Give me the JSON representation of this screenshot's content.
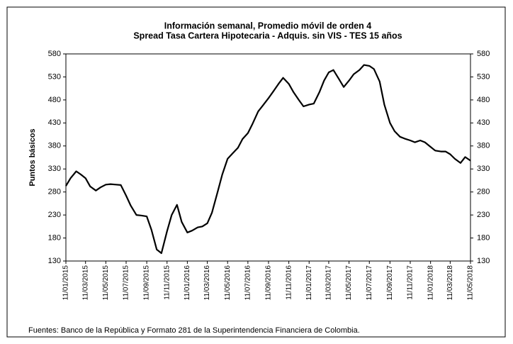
{
  "chart_data": {
    "type": "line",
    "title": [
      "Información semanal, Promedio móvil de orden 4",
      "Spread Tasa Cartera Hipotecaria - Adquis. sin VIS -  TES 15 años"
    ],
    "y_label": "Puntos básicos",
    "source": "Fuentes: Banco de la República y Formato 281 de la Superintendencia Financiera de Colombia.",
    "x": [
      "11/01/2015",
      "25/01/2015",
      "11/02/2015",
      "25/02/2015",
      "11/03/2015",
      "25/03/2015",
      "11/04/2015",
      "25/04/2015",
      "11/05/2015",
      "25/05/2015",
      "11/06/2015",
      "25/06/2015",
      "11/07/2015",
      "25/07/2015",
      "11/08/2015",
      "25/08/2015",
      "11/09/2015",
      "25/09/2015",
      "11/10/2015",
      "25/10/2015",
      "11/11/2015",
      "25/11/2015",
      "11/12/2015",
      "25/12/2015",
      "11/01/2016",
      "25/01/2016",
      "11/02/2016",
      "25/02/2016",
      "11/03/2016",
      "25/03/2016",
      "11/04/2016",
      "25/04/2016",
      "11/05/2016",
      "25/05/2016",
      "11/06/2016",
      "25/06/2016",
      "11/07/2016",
      "25/07/2016",
      "11/08/2016",
      "25/08/2016",
      "11/09/2016",
      "25/09/2016",
      "11/10/2016",
      "25/10/2016",
      "11/11/2016",
      "25/11/2016",
      "11/12/2016",
      "25/12/2016",
      "11/01/2017",
      "25/01/2017",
      "11/02/2017",
      "25/02/2017",
      "11/03/2017",
      "25/03/2017",
      "11/04/2017",
      "25/04/2017",
      "11/05/2017",
      "25/05/2017",
      "11/06/2017",
      "25/06/2017",
      "11/07/2017",
      "25/07/2017",
      "11/08/2017",
      "25/08/2017",
      "11/09/2017",
      "25/09/2017",
      "11/10/2017",
      "25/10/2017",
      "11/11/2017",
      "25/11/2017",
      "11/12/2017",
      "25/12/2017",
      "11/01/2018",
      "25/01/2018",
      "11/02/2018",
      "25/02/2018",
      "11/03/2018",
      "25/03/2018",
      "11/04/2018",
      "25/04/2018",
      "11/05/2018"
    ],
    "series": [
      {
        "name": "Spread",
        "color": "#000000",
        "values": [
          293,
          310,
          325,
          318,
          310,
          292,
          283,
          290,
          296,
          297,
          296,
          295,
          272,
          250,
          230,
          229,
          227,
          198,
          155,
          147,
          195,
          230,
          252,
          215,
          192,
          196,
          203,
          205,
          212,
          235,
          280,
          318,
          352,
          363,
          376,
          395,
          408,
          428,
          455,
          468,
          484,
          498,
          515,
          528,
          515,
          497,
          480,
          466,
          470,
          472,
          497,
          522,
          540,
          545,
          525,
          508,
          522,
          536,
          545,
          556,
          554,
          547,
          520,
          470,
          430,
          412,
          400,
          396,
          392,
          388,
          392,
          388,
          378,
          370,
          368,
          368,
          362,
          352,
          343,
          356,
          348
        ]
      }
    ],
    "xlim": [
      "11/01/2015",
      "11/05/2018"
    ],
    "xticks": [
      "11/01/2015",
      "11/03/2015",
      "11/05/2015",
      "11/07/2015",
      "11/09/2015",
      "11/11/2015",
      "11/01/2016",
      "11/03/2016",
      "11/05/2016",
      "11/07/2016",
      "11/09/2016",
      "11/11/2016",
      "11/01/2017",
      "11/03/2017",
      "11/05/2017",
      "11/07/2017",
      "11/09/2017",
      "11/11/2017",
      "11/01/2018",
      "11/03/2018",
      "11/05/2018"
    ],
    "ylim": [
      130,
      580
    ],
    "yticks": [
      130,
      180,
      230,
      280,
      330,
      380,
      430,
      480,
      530,
      580
    ],
    "y2lim": [
      130,
      580
    ],
    "y2ticks": [
      130,
      180,
      230,
      280,
      330,
      380,
      430,
      480,
      530,
      580
    ]
  }
}
